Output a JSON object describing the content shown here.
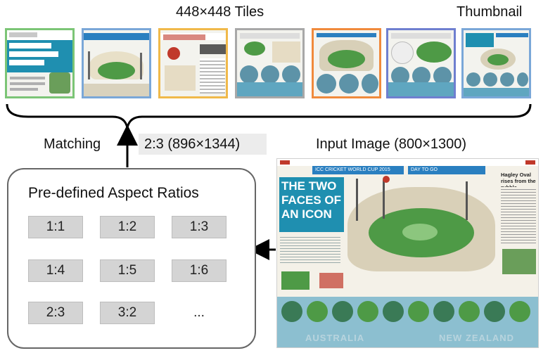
{
  "tiles_label": "448×448 Tiles",
  "thumbnail_label": "Thumbnail",
  "matching_label": "Matching",
  "matched_ratio": "2:3 (896×1344)",
  "input_label": "Input Image (800×1300)",
  "ratios_panel": {
    "title": "Pre-defined Aspect Ratios",
    "items": [
      "1:1",
      "1:2",
      "1:3",
      "1:4",
      "1:5",
      "1:6",
      "2:3",
      "3:2",
      "..."
    ]
  },
  "poster_text": {
    "headline_1": "THE TWO",
    "headline_2": "FACES OF",
    "headline_3": "AN ICON",
    "side_title": "Hagley Oval rises from the rubble",
    "banner": "ICC CRICKET WORLD CUP 2015",
    "day_to_go": "DAY TO GO",
    "country_1": "AUSTRALIA",
    "country_2": "NEW ZEALAND"
  },
  "colors": {
    "tile_border_1": "#7cc576",
    "tile_border_2": "#7aa7d8",
    "tile_border_3": "#f0b94a",
    "tile_border_4": "#a8a8a8",
    "tile_border_5": "#f08a3c",
    "tile_border_6": "#6f7fd0",
    "tile_border_7": "#7aa7d8",
    "poster_title_bg": "#1f8fb0",
    "banner_blue": "#2a7fc0"
  }
}
